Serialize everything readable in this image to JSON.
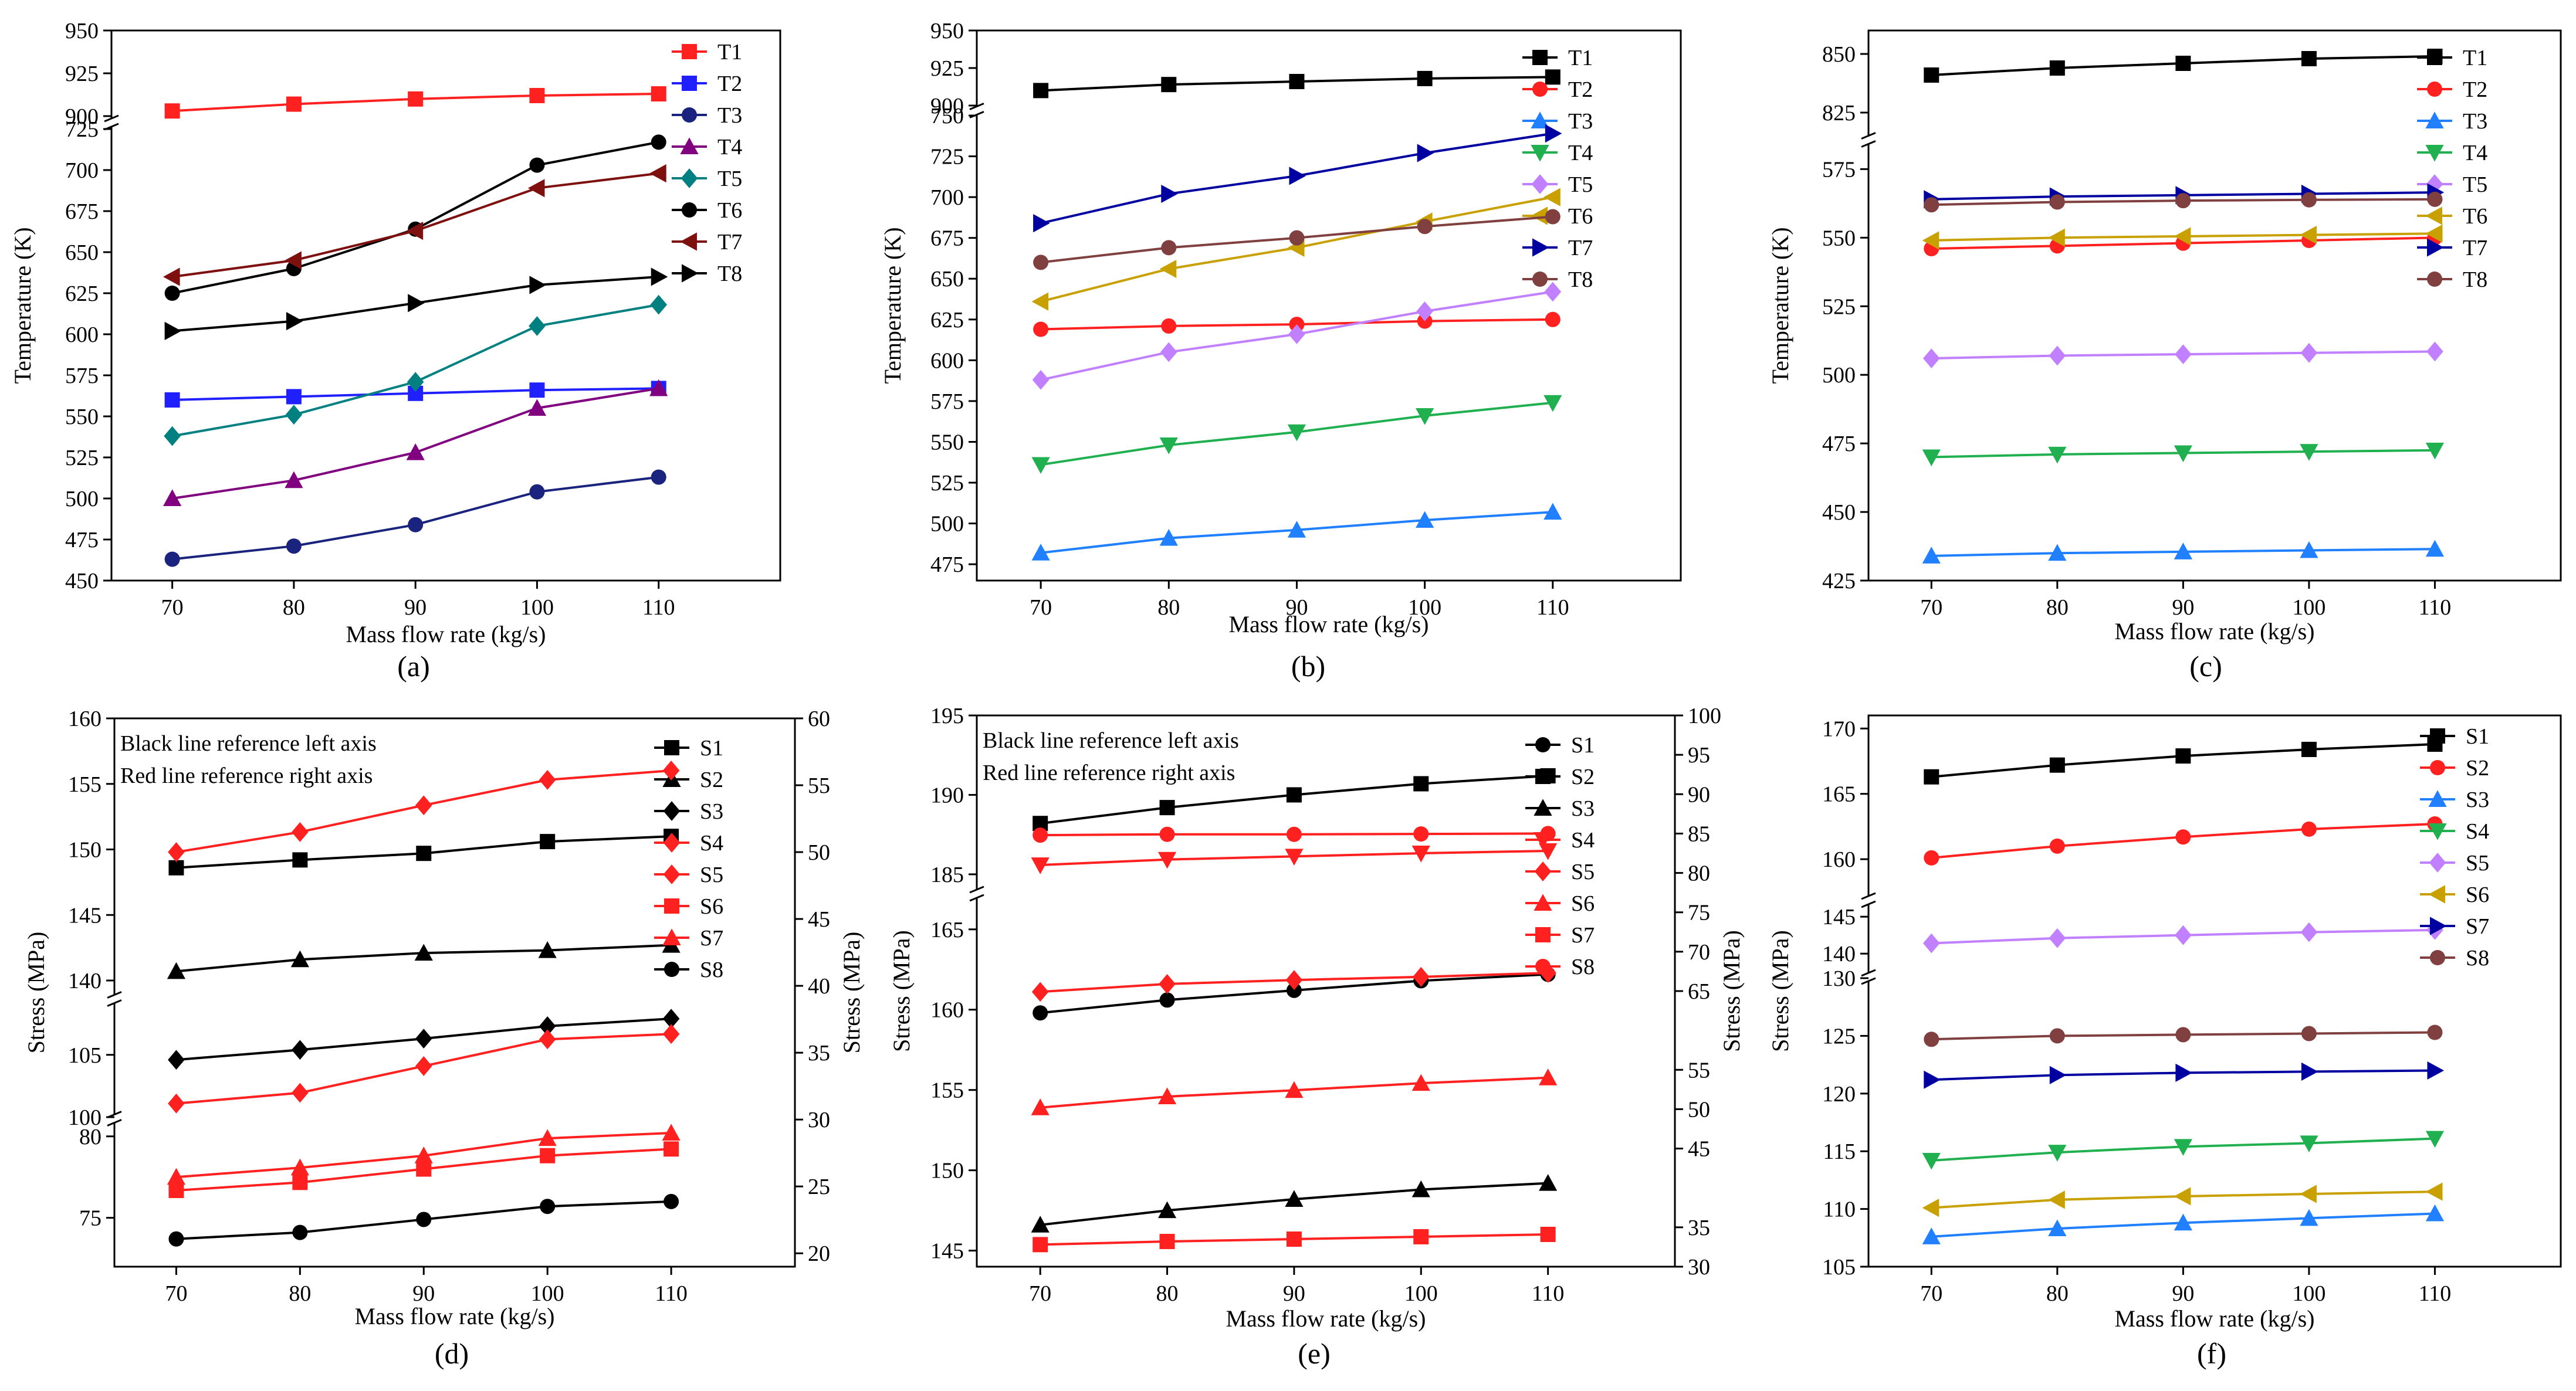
{
  "figure": {
    "panels": [
      "a",
      "b",
      "c",
      "d",
      "e",
      "f"
    ]
  },
  "chart_data": [
    {
      "id": "a",
      "type": "line",
      "panel_label": "(a)",
      "xlabel": "Mass flow rate (kg/s)",
      "ylabel": "Temperature (K)",
      "x": [
        70,
        80,
        90,
        100,
        110
      ],
      "xlim": [
        65,
        120
      ],
      "xticks": [
        70,
        80,
        90,
        100,
        110
      ],
      "segments": [
        {
          "range": [
            450,
            725
          ],
          "ticks": [
            450,
            475,
            500,
            525,
            550,
            575,
            600,
            625,
            650,
            675,
            700,
            725
          ]
        },
        {
          "range": [
            900,
            950
          ],
          "ticks": [
            900,
            925,
            950
          ]
        }
      ],
      "series": [
        {
          "name": "T1",
          "color": "#ff2020",
          "marker": "square",
          "values": [
            903,
            907,
            910,
            912,
            913
          ]
        },
        {
          "name": "T2",
          "color": "#2020ff",
          "marker": "square",
          "values": [
            560,
            562,
            564,
            566,
            567
          ]
        },
        {
          "name": "T3",
          "color": "#1a237e",
          "marker": "circle",
          "values": [
            463,
            471,
            484,
            504,
            513
          ]
        },
        {
          "name": "T4",
          "color": "#800080",
          "marker": "triangle-up",
          "values": [
            500,
            511,
            528,
            555,
            567
          ]
        },
        {
          "name": "T5",
          "color": "#008080",
          "marker": "diamond",
          "values": [
            538,
            551,
            571,
            605,
            618
          ]
        },
        {
          "name": "T6",
          "color": "#000000",
          "marker": "circle",
          "values": [
            625,
            640,
            664,
            703,
            717
          ]
        },
        {
          "name": "T7",
          "color": "#7f1010",
          "marker": "triangle-left",
          "values": [
            635,
            645,
            663,
            689,
            698
          ]
        },
        {
          "name": "T8",
          "color": "#000000",
          "marker": "triangle-right",
          "values": [
            602,
            608,
            619,
            630,
            635
          ]
        }
      ]
    },
    {
      "id": "b",
      "type": "line",
      "panel_label": "(b)",
      "xlabel": "Mass flow rate (kg/s)",
      "ylabel": "Temperature (K)",
      "x": [
        70,
        80,
        90,
        100,
        110
      ],
      "xlim": [
        65,
        120
      ],
      "xticks": [
        70,
        80,
        90,
        100,
        110
      ],
      "segments": [
        {
          "range": [
            465,
            750
          ],
          "ticks": [
            475,
            500,
            525,
            550,
            575,
            600,
            625,
            650,
            675,
            700,
            725,
            750
          ]
        },
        {
          "range": [
            900,
            950
          ],
          "ticks": [
            900,
            925,
            950
          ]
        }
      ],
      "series": [
        {
          "name": "T1",
          "color": "#000000",
          "marker": "square",
          "values": [
            910,
            914,
            916,
            918,
            919
          ]
        },
        {
          "name": "T2",
          "color": "#ff2020",
          "marker": "circle",
          "values": [
            619,
            621,
            622,
            624,
            625
          ]
        },
        {
          "name": "T3",
          "color": "#2080ff",
          "marker": "triangle-up",
          "values": [
            482,
            491,
            496,
            502,
            507
          ]
        },
        {
          "name": "T4",
          "color": "#20b050",
          "marker": "triangle-down",
          "values": [
            536,
            548,
            556,
            566,
            574
          ]
        },
        {
          "name": "T5",
          "color": "#c080ff",
          "marker": "diamond",
          "values": [
            588,
            605,
            616,
            630,
            642
          ]
        },
        {
          "name": "T6",
          "color": "#c8a000",
          "marker": "triangle-left",
          "values": [
            636,
            656,
            669,
            685,
            700
          ]
        },
        {
          "name": "T7",
          "color": "#0000a0",
          "marker": "triangle-right",
          "values": [
            684,
            702,
            713,
            727,
            739
          ]
        },
        {
          "name": "T8",
          "color": "#804040",
          "marker": "circle",
          "values": [
            660,
            669,
            675,
            682,
            688
          ]
        }
      ]
    },
    {
      "id": "c",
      "type": "line",
      "panel_label": "(c)",
      "xlabel": "Mass flow rate (kg/s)",
      "ylabel": "Temperature (K)",
      "x": [
        70,
        80,
        90,
        100,
        110
      ],
      "xlim": [
        65,
        120
      ],
      "xticks": [
        70,
        80,
        90,
        100,
        110
      ],
      "segments": [
        {
          "range": [
            425,
            580
          ],
          "ticks": [
            425,
            450,
            475,
            500,
            525,
            550,
            575
          ]
        },
        {
          "range": [
            820,
            860
          ],
          "ticks": [
            825,
            850
          ]
        }
      ],
      "series": [
        {
          "name": "T1",
          "color": "#000000",
          "marker": "square",
          "values": [
            841,
            844,
            846,
            848,
            849
          ]
        },
        {
          "name": "T2",
          "color": "#ff2020",
          "marker": "circle",
          "values": [
            546,
            547,
            548,
            549,
            550
          ]
        },
        {
          "name": "T3",
          "color": "#2080ff",
          "marker": "triangle-up",
          "values": [
            434,
            435,
            435.5,
            436,
            436.5
          ]
        },
        {
          "name": "T4",
          "color": "#20b050",
          "marker": "triangle-down",
          "values": [
            470,
            471,
            471.5,
            472,
            472.5
          ]
        },
        {
          "name": "T5",
          "color": "#c080ff",
          "marker": "diamond",
          "values": [
            506,
            507,
            507.5,
            508,
            508.5
          ]
        },
        {
          "name": "T6",
          "color": "#c8a000",
          "marker": "triangle-left",
          "values": [
            549,
            550,
            550.5,
            551,
            551.5
          ]
        },
        {
          "name": "T7",
          "color": "#0000a0",
          "marker": "triangle-right",
          "values": [
            564,
            565,
            565.5,
            566,
            566.5
          ]
        },
        {
          "name": "T8",
          "color": "#804040",
          "marker": "circle",
          "values": [
            562,
            563,
            563.5,
            563.8,
            564
          ]
        }
      ]
    },
    {
      "id": "d",
      "type": "line",
      "panel_label": "(d)",
      "xlabel": "Mass flow rate (kg/s)",
      "ylabel": "Stress (MPa)",
      "ylabel_right": "Stress (MPa)",
      "x": [
        70,
        80,
        90,
        100,
        110
      ],
      "xlim": [
        65,
        120
      ],
      "xticks": [
        70,
        80,
        90,
        100,
        110
      ],
      "annotation": [
        "Black line reference left axis",
        "Red line reference right axis"
      ],
      "segments": [
        {
          "range": [
            72,
            81
          ],
          "ticks": [
            75,
            80
          ]
        },
        {
          "range": [
            100,
            108
          ],
          "ticks": [
            100,
            105
          ]
        },
        {
          "range": [
            140,
            160
          ],
          "ticks": [
            140,
            145,
            150,
            155,
            160
          ]
        }
      ],
      "right_axis": {
        "range": [
          19,
          60
        ],
        "ticks": [
          20,
          25,
          30,
          35,
          40,
          45,
          50,
          55,
          60
        ]
      },
      "series": [
        {
          "name": "S1",
          "color": "#000000",
          "marker": "square",
          "axis": "left",
          "values": [
            148.6,
            149.2,
            149.7,
            150.6,
            151.0
          ]
        },
        {
          "name": "S2",
          "color": "#000000",
          "marker": "triangle-up",
          "axis": "left",
          "values": [
            140.7,
            141.6,
            142.1,
            142.3,
            142.7
          ]
        },
        {
          "name": "S3",
          "color": "#000000",
          "marker": "diamond",
          "axis": "left",
          "values": [
            104.6,
            105.4,
            106.3,
            107.3,
            107.9
          ]
        },
        {
          "name": "S4",
          "color": "#ff2020",
          "marker": "diamond",
          "axis": "right",
          "values": [
            50.0,
            51.5,
            53.5,
            55.4,
            56.1
          ]
        },
        {
          "name": "S5",
          "color": "#ff2020",
          "marker": "diamond",
          "axis": "right",
          "values": [
            31.2,
            32.0,
            34.0,
            36.0,
            36.4
          ]
        },
        {
          "name": "S6",
          "color": "#ff2020",
          "marker": "square",
          "axis": "right",
          "values": [
            24.7,
            25.3,
            26.3,
            27.3,
            27.8
          ]
        },
        {
          "name": "S7",
          "color": "#ff2020",
          "marker": "triangle-up",
          "axis": "right",
          "values": [
            25.7,
            26.4,
            27.3,
            28.6,
            29.0
          ]
        },
        {
          "name": "S8",
          "color": "#000000",
          "marker": "circle",
          "axis": "left",
          "values": [
            73.7,
            74.1,
            74.9,
            75.7,
            76.0
          ]
        }
      ]
    },
    {
      "id": "e",
      "type": "line",
      "panel_label": "(e)",
      "xlabel": "Mass flow rate (kg/s)",
      "ylabel": "Stress (MPa)",
      "ylabel_right": "Stress (MPa)",
      "x": [
        70,
        80,
        90,
        100,
        110
      ],
      "xlim": [
        65,
        120
      ],
      "xticks": [
        70,
        80,
        90,
        100,
        110
      ],
      "annotation": [
        "Black line reference left axis",
        "Red line reference right axis"
      ],
      "segments": [
        {
          "range": [
            144,
            167
          ],
          "ticks": [
            145,
            150,
            155,
            160,
            165
          ]
        },
        {
          "range": [
            184,
            195
          ],
          "ticks": [
            185,
            190,
            195
          ]
        }
      ],
      "right_axis": {
        "range": [
          30,
          100
        ],
        "ticks": [
          30,
          35,
          45,
          50,
          55,
          65,
          70,
          75,
          80,
          85,
          90,
          95,
          100
        ]
      },
      "series": [
        {
          "name": "S1",
          "color": "#000000",
          "marker": "circle",
          "axis": "left",
          "values": [
            159.8,
            160.6,
            161.2,
            161.8,
            162.2
          ]
        },
        {
          "name": "S2",
          "color": "#000000",
          "marker": "square",
          "axis": "left",
          "values": [
            188.2,
            189.2,
            190.0,
            190.7,
            191.2
          ]
        },
        {
          "name": "S3",
          "color": "#000000",
          "marker": "triangle-up",
          "axis": "left",
          "values": [
            146.6,
            147.5,
            148.2,
            148.8,
            149.2
          ]
        },
        {
          "name": "S4",
          "color": "#ff2020",
          "marker": "triangle-down",
          "axis": "right",
          "values": [
            81.0,
            81.7,
            82.1,
            82.5,
            82.8
          ]
        },
        {
          "name": "S5",
          "color": "#ff2020",
          "marker": "diamond",
          "axis": "right",
          "values": [
            64.9,
            65.9,
            66.4,
            66.8,
            67.3
          ]
        },
        {
          "name": "S6",
          "color": "#ff2020",
          "marker": "triangle-up",
          "axis": "right",
          "values": [
            50.2,
            51.6,
            52.4,
            53.3,
            54.0
          ]
        },
        {
          "name": "S7",
          "color": "#ff2020",
          "marker": "square",
          "axis": "right",
          "values": [
            32.8,
            33.2,
            33.5,
            33.8,
            34.1
          ]
        },
        {
          "name": "S8",
          "color": "#ff2020",
          "marker": "circle",
          "axis": "right",
          "values": [
            84.8,
            84.9,
            84.9,
            84.95,
            85.0
          ]
        }
      ]
    },
    {
      "id": "f",
      "type": "line",
      "panel_label": "(f)",
      "xlabel": "Mass flow rate (kg/s)",
      "ylabel": "Stress (MPa)",
      "x": [
        70,
        80,
        90,
        100,
        110
      ],
      "xlim": [
        65,
        120
      ],
      "xticks": [
        70,
        80,
        90,
        100,
        110
      ],
      "segments": [
        {
          "range": [
            105,
            130
          ],
          "ticks": [
            105,
            110,
            115,
            120,
            125,
            130
          ]
        },
        {
          "range": [
            137,
            147
          ],
          "ticks": [
            140,
            145
          ]
        },
        {
          "range": [
            157,
            171
          ],
          "ticks": [
            160,
            165,
            170
          ]
        }
      ],
      "series": [
        {
          "name": "S1",
          "color": "#000000",
          "marker": "square",
          "values": [
            166.3,
            167.2,
            167.9,
            168.4,
            168.8
          ]
        },
        {
          "name": "S2",
          "color": "#ff2020",
          "marker": "circle",
          "values": [
            160.1,
            161.0,
            161.7,
            162.3,
            162.7
          ]
        },
        {
          "name": "S3",
          "color": "#2080ff",
          "marker": "triangle-up",
          "values": [
            107.6,
            108.3,
            108.8,
            109.2,
            109.6
          ]
        },
        {
          "name": "S4",
          "color": "#20b050",
          "marker": "triangle-down",
          "values": [
            114.2,
            114.9,
            115.4,
            115.7,
            116.1
          ]
        },
        {
          "name": "S5",
          "color": "#c080ff",
          "marker": "diamond",
          "values": [
            141.4,
            142.1,
            142.5,
            142.9,
            143.2
          ]
        },
        {
          "name": "S6",
          "color": "#c8a000",
          "marker": "triangle-left",
          "values": [
            110.1,
            110.8,
            111.1,
            111.3,
            111.5
          ]
        },
        {
          "name": "S7",
          "color": "#0000a0",
          "marker": "triangle-right",
          "values": [
            121.2,
            121.6,
            121.8,
            121.9,
            122.0
          ]
        },
        {
          "name": "S8",
          "color": "#804040",
          "marker": "circle",
          "values": [
            124.7,
            125.0,
            125.1,
            125.2,
            125.3
          ]
        }
      ]
    }
  ]
}
